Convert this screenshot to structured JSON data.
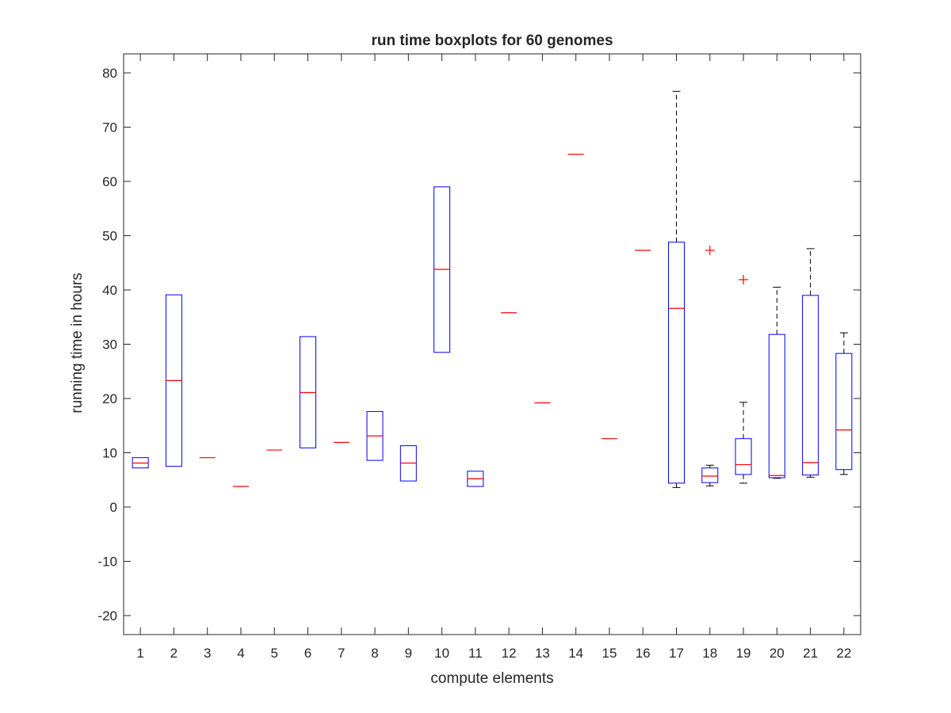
{
  "chart_data": {
    "type": "boxplot",
    "title": "run time boxplots for 60 genomes",
    "xlabel": "compute elements",
    "ylabel": "running time in hours",
    "ylim": [
      -23.5,
      83.5
    ],
    "yticks": [
      -20,
      -10,
      0,
      10,
      20,
      30,
      40,
      50,
      60,
      70,
      80
    ],
    "categories": [
      "1",
      "2",
      "3",
      "4",
      "5",
      "6",
      "7",
      "8",
      "9",
      "10",
      "11",
      "12",
      "13",
      "14",
      "15",
      "16",
      "17",
      "18",
      "19",
      "20",
      "21",
      "22"
    ],
    "colors": {
      "box": "#0000ff",
      "median": "#ff0000",
      "whisker": "#000000",
      "outlier": "#ff0000",
      "axis": "#262626"
    },
    "boxes": [
      {
        "category": "1",
        "q1": 7.2,
        "median": 8.1,
        "q3": 9.1,
        "whisker_low": 7.2,
        "whisker_high": 9.1,
        "outliers": []
      },
      {
        "category": "2",
        "q1": 7.5,
        "median": 23.3,
        "q3": 39.1,
        "whisker_low": 7.5,
        "whisker_high": 39.1,
        "outliers": []
      },
      {
        "category": "3",
        "q1": 9.1,
        "median": 9.1,
        "q3": 9.1,
        "whisker_low": 9.1,
        "whisker_high": 9.1,
        "outliers": []
      },
      {
        "category": "4",
        "q1": 3.8,
        "median": 3.8,
        "q3": 3.8,
        "whisker_low": 3.8,
        "whisker_high": 3.8,
        "outliers": []
      },
      {
        "category": "5",
        "q1": 10.5,
        "median": 10.5,
        "q3": 10.5,
        "whisker_low": 10.5,
        "whisker_high": 10.5,
        "outliers": []
      },
      {
        "category": "6",
        "q1": 10.9,
        "median": 21.1,
        "q3": 31.4,
        "whisker_low": 10.9,
        "whisker_high": 31.4,
        "outliers": []
      },
      {
        "category": "7",
        "q1": 11.9,
        "median": 11.9,
        "q3": 11.9,
        "whisker_low": 11.9,
        "whisker_high": 11.9,
        "outliers": []
      },
      {
        "category": "8",
        "q1": 8.6,
        "median": 13.1,
        "q3": 17.6,
        "whisker_low": 8.6,
        "whisker_high": 17.6,
        "outliers": []
      },
      {
        "category": "9",
        "q1": 4.8,
        "median": 8.1,
        "q3": 11.3,
        "whisker_low": 4.8,
        "whisker_high": 11.3,
        "outliers": []
      },
      {
        "category": "10",
        "q1": 28.5,
        "median": 43.8,
        "q3": 59.0,
        "whisker_low": 28.5,
        "whisker_high": 59.0,
        "outliers": []
      },
      {
        "category": "11",
        "q1": 3.8,
        "median": 5.2,
        "q3": 6.6,
        "whisker_low": 3.8,
        "whisker_high": 6.6,
        "outliers": []
      },
      {
        "category": "12",
        "q1": 35.8,
        "median": 35.8,
        "q3": 35.8,
        "whisker_low": 35.8,
        "whisker_high": 35.8,
        "outliers": []
      },
      {
        "category": "13",
        "q1": 19.2,
        "median": 19.2,
        "q3": 19.2,
        "whisker_low": 19.2,
        "whisker_high": 19.2,
        "outliers": []
      },
      {
        "category": "14",
        "q1": 65.0,
        "median": 65.0,
        "q3": 65.0,
        "whisker_low": 65.0,
        "whisker_high": 65.0,
        "outliers": []
      },
      {
        "category": "15",
        "q1": 12.6,
        "median": 12.6,
        "q3": 12.6,
        "whisker_low": 12.6,
        "whisker_high": 12.6,
        "outliers": []
      },
      {
        "category": "16",
        "q1": 47.3,
        "median": 47.3,
        "q3": 47.3,
        "whisker_low": 47.3,
        "whisker_high": 47.3,
        "outliers": []
      },
      {
        "category": "17",
        "q1": 4.4,
        "median": 36.6,
        "q3": 48.8,
        "whisker_low": 3.6,
        "whisker_high": 76.6,
        "outliers": []
      },
      {
        "category": "18",
        "q1": 4.5,
        "median": 5.7,
        "q3": 7.2,
        "whisker_low": 3.9,
        "whisker_high": 7.7,
        "outliers": [
          47.3
        ]
      },
      {
        "category": "19",
        "q1": 6.0,
        "median": 7.8,
        "q3": 12.6,
        "whisker_low": 4.4,
        "whisker_high": 19.3,
        "outliers": [
          41.9
        ]
      },
      {
        "category": "20",
        "q1": 5.4,
        "median": 5.8,
        "q3": 31.8,
        "whisker_low": 5.3,
        "whisker_high": 40.5,
        "outliers": []
      },
      {
        "category": "21",
        "q1": 5.9,
        "median": 8.2,
        "q3": 39.0,
        "whisker_low": 5.5,
        "whisker_high": 47.6,
        "outliers": []
      },
      {
        "category": "22",
        "q1": 6.9,
        "median": 14.2,
        "q3": 28.3,
        "whisker_low": 6.0,
        "whisker_high": 32.1,
        "outliers": []
      }
    ]
  }
}
